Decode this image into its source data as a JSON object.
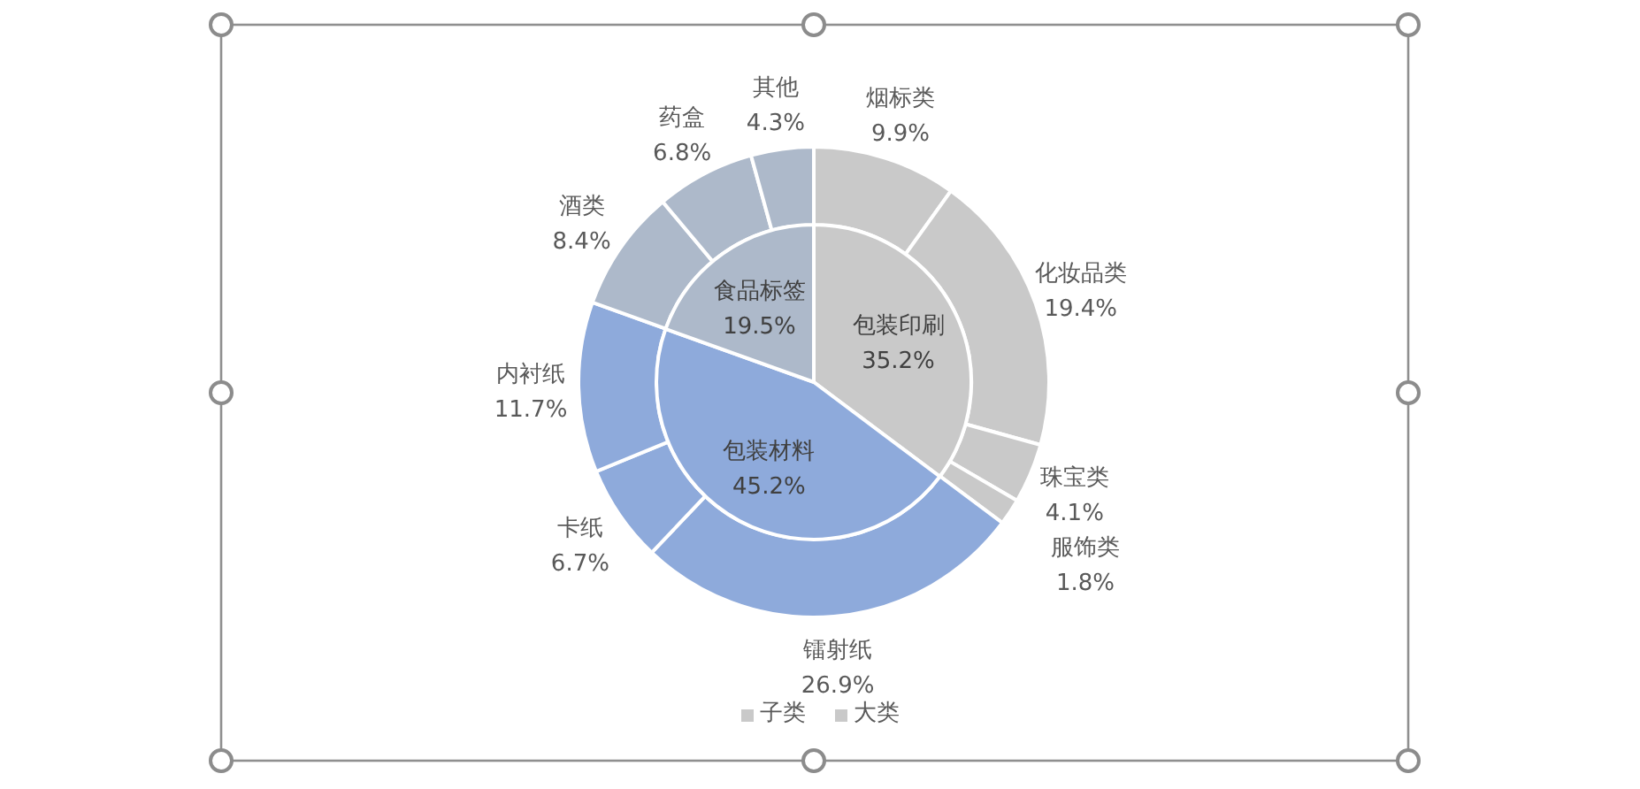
{
  "chart_data": [
    {
      "type": "donut",
      "legend": "bottom",
      "categories": [
        "烟标类",
        "化妆品类",
        "珠宝类",
        "服饰类",
        "镭射纸",
        "卡纸",
        "内衬纸",
        "酒类",
        "药盒",
        "其他"
      ],
      "series": [
        {
          "name": "子类",
          "color": "#c9c9c9",
          "values": [
            9.9,
            19.4,
            4.1,
            1.8,
            26.9,
            6.7,
            11.7,
            8.4,
            6.8,
            4.3
          ],
          "colors": [
            "#c9c9c9",
            "#c9c9c9",
            "#c9c9c9",
            "#c9c9c9",
            "#8eaadb",
            "#8eaadb",
            "#8eaadb",
            "#adb9ca",
            "#adb9ca",
            "#adb9ca"
          ],
          "value_labels": [
            "9.9%",
            "19.4%",
            "4.1%",
            "1.8%",
            "26.9%",
            "6.7%",
            "11.7%",
            "8.4%",
            "6.8%",
            "4.3%"
          ]
        }
      ]
    },
    {
      "type": "pie",
      "legend": "bottom",
      "categories": [
        "包装印刷",
        "包装材料",
        "食品标签"
      ],
      "series": [
        {
          "name": "大类",
          "color": "#c9c9c9",
          "values": [
            35.2,
            45.2,
            19.5
          ],
          "colors": [
            "#c9c9c9",
            "#8eaadb",
            "#adb9ca"
          ],
          "value_labels": [
            "35.2%",
            "45.2%",
            "19.5%"
          ]
        }
      ]
    }
  ]
}
